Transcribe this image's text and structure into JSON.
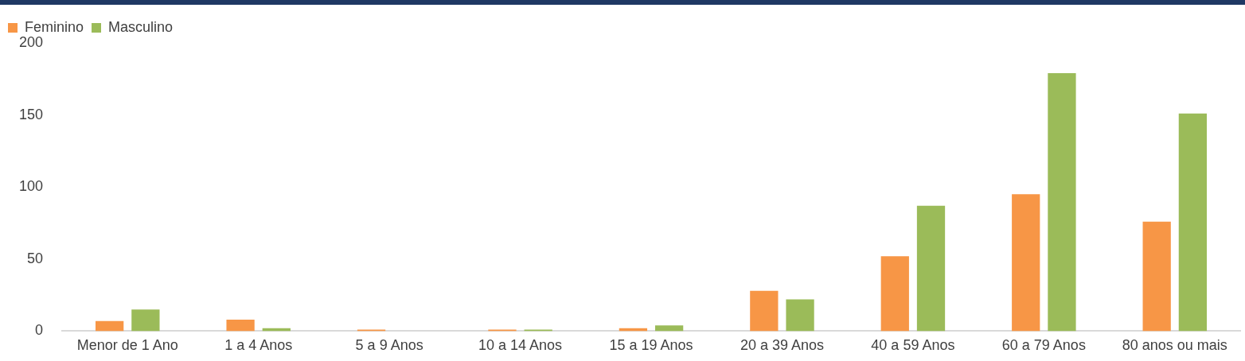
{
  "chart_data": {
    "type": "bar",
    "categories": [
      "Menor de 1 Ano",
      "1 a 4 Anos",
      "5 a 9 Anos",
      "10 a 14 Anos",
      "15 a 19 Anos",
      "20 a 39 Anos",
      "40 a 59 Anos",
      "60 a 79 Anos",
      "80 anos ou mais"
    ],
    "series": [
      {
        "name": "Feminino",
        "color": "#f79646",
        "values": [
          7,
          8,
          1,
          1,
          2,
          28,
          52,
          95,
          76
        ]
      },
      {
        "name": "Masculino",
        "color": "#9bbb59",
        "values": [
          15,
          2,
          0,
          1,
          4,
          22,
          87,
          179,
          151
        ]
      }
    ],
    "ylim": [
      0,
      200
    ],
    "yticks": [
      0,
      50,
      100,
      150,
      200
    ],
    "grid": false,
    "legend": "top left"
  }
}
